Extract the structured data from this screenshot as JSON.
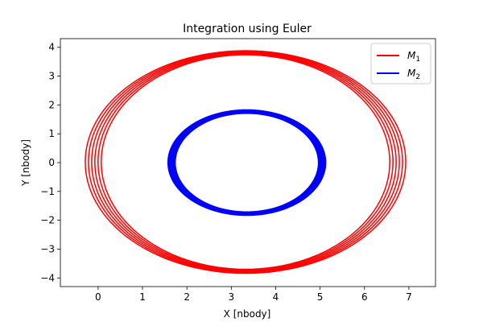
{
  "chart_data": {
    "type": "line",
    "title": "Integration using Euler",
    "xlabel": "X [nbody]",
    "ylabel": "Y [nbody]",
    "xlim": [
      -0.85,
      7.6
    ],
    "ylim": [
      -4.3,
      4.3
    ],
    "xticks": [
      "0",
      "1",
      "2",
      "3",
      "4",
      "5",
      "6",
      "7"
    ],
    "yticks": [
      "−4",
      "−3",
      "−2",
      "−1",
      "0",
      "1",
      "2",
      "3",
      "4"
    ],
    "legend_position": "top-right",
    "series": [
      {
        "name": "M",
        "name_subscript": "1",
        "color": "#ff0000",
        "x": [
          0.0,
          0.5,
          1.3,
          2.2,
          3.3,
          4.5,
          5.6,
          6.6,
          7.1,
          6.9,
          6.1,
          5.0,
          3.6,
          2.2,
          1.0,
          0.2,
          -0.5,
          -0.3,
          0.0
        ],
        "y": [
          0.0,
          1.7,
          2.9,
          3.6,
          3.85,
          3.65,
          3.0,
          1.7,
          0.0,
          -1.6,
          -2.9,
          -3.55,
          -3.8,
          -3.6,
          -3.0,
          -2.0,
          0.0,
          1.6,
          2.0
        ]
      },
      {
        "name": "M",
        "name_subscript": "2",
        "color": "#0000ff",
        "x": [
          5.0,
          4.8,
          4.4,
          3.85,
          3.3,
          2.7,
          2.1,
          1.75,
          1.6,
          1.75,
          2.15,
          2.7,
          3.3,
          3.9,
          4.55,
          4.9,
          5.05
        ],
        "y": [
          0.0,
          0.9,
          1.45,
          1.75,
          1.8,
          1.7,
          1.3,
          0.7,
          0.0,
          -0.8,
          -1.35,
          -1.7,
          -1.8,
          -1.7,
          -1.5,
          -0.8,
          0.0
        ]
      }
    ]
  }
}
